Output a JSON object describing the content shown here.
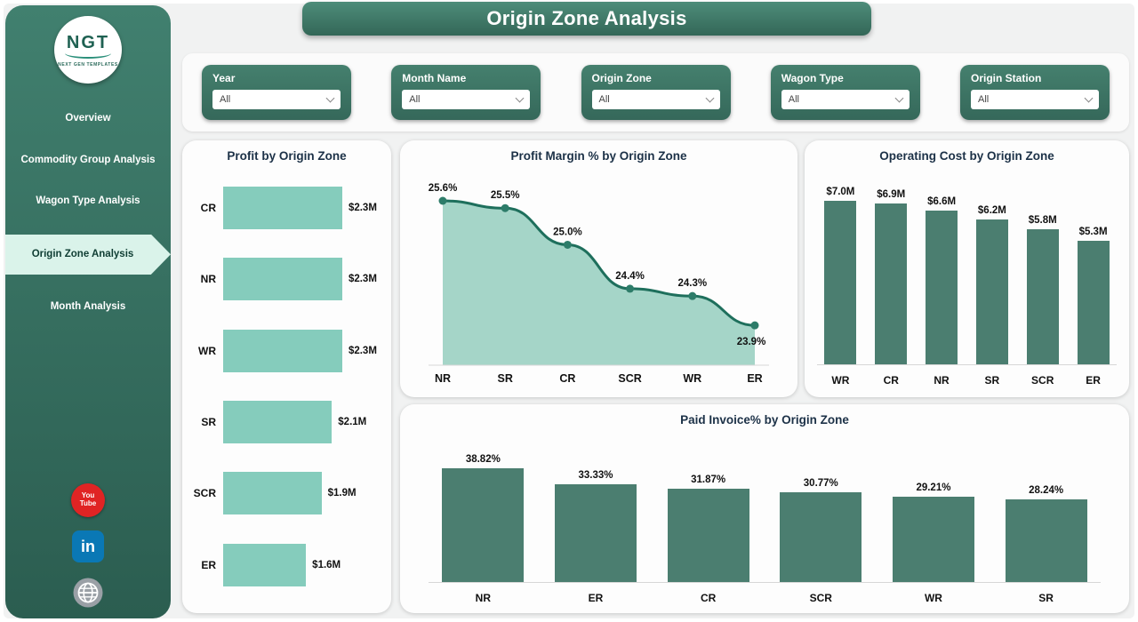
{
  "theme": {
    "bar_light": "#85ccbc",
    "bar_dark": "#4b7e70",
    "line": "#1e6f5c",
    "area_fill": "#a5d5c8",
    "dot": "#2d7c69",
    "sidebar_top": "#41806f",
    "sidebar_bottom": "#2b5d50",
    "active_nav_bg": "#daf3ea"
  },
  "header": {
    "title": "Origin Zone Analysis"
  },
  "sidebar": {
    "logo": {
      "text": "NGT",
      "subtext": "NEXT GEN TEMPLATES"
    },
    "items": [
      {
        "label": "Overview",
        "active": false
      },
      {
        "label": "Commodity Group Analysis",
        "active": false
      },
      {
        "label": "Wagon Type Analysis",
        "active": false
      },
      {
        "label": "Origin Zone Analysis",
        "active": true
      },
      {
        "label": "Month Analysis",
        "active": false
      }
    ],
    "social": {
      "youtube_line1": "You",
      "youtube_line2": "Tube",
      "linkedin": "in"
    }
  },
  "filters": [
    {
      "label": "Year",
      "value": "All"
    },
    {
      "label": "Month Name",
      "value": "All"
    },
    {
      "label": "Origin Zone",
      "value": "All"
    },
    {
      "label": "Wagon Type",
      "value": "All"
    },
    {
      "label": "Origin Station",
      "value": "All"
    }
  ],
  "chart_data": [
    {
      "type": "bar",
      "orientation": "horizontal",
      "title": "Profit by Origin Zone",
      "categories": [
        "CR",
        "NR",
        "WR",
        "SR",
        "SCR",
        "ER"
      ],
      "values": [
        2.3,
        2.3,
        2.3,
        2.1,
        1.9,
        1.6
      ],
      "labels": [
        "$2.3M",
        "$2.3M",
        "$2.3M",
        "$2.1M",
        "$1.9M",
        "$1.6M"
      ],
      "xlabel": "",
      "ylabel": "",
      "xlim": [
        0,
        2.5
      ],
      "grid": false
    },
    {
      "type": "area",
      "title": "Profit Margin % by Origin Zone",
      "categories": [
        "NR",
        "SR",
        "CR",
        "SCR",
        "WR",
        "ER"
      ],
      "values": [
        25.6,
        25.5,
        25.0,
        24.4,
        24.3,
        23.9
      ],
      "labels": [
        "25.6%",
        "25.5%",
        "25.0%",
        "24.4%",
        "24.3%",
        "23.9%"
      ],
      "xlabel": "",
      "ylabel": "",
      "ylim": [
        23.5,
        26
      ],
      "grid": false
    },
    {
      "type": "bar",
      "orientation": "vertical",
      "title": "Operating Cost by Origin Zone",
      "categories": [
        "WR",
        "CR",
        "NR",
        "SR",
        "SCR",
        "ER"
      ],
      "values": [
        7.0,
        6.9,
        6.6,
        6.2,
        5.8,
        5.3
      ],
      "labels": [
        "$7.0M",
        "$6.9M",
        "$6.6M",
        "$6.2M",
        "$5.8M",
        "$5.3M"
      ],
      "xlabel": "",
      "ylabel": "",
      "ylim": [
        0,
        7.5
      ],
      "grid": false
    },
    {
      "type": "bar",
      "orientation": "vertical",
      "title": "Paid Invoice% by Origin Zone",
      "categories": [
        "NR",
        "ER",
        "CR",
        "SCR",
        "WR",
        "SR"
      ],
      "values": [
        38.82,
        33.33,
        31.87,
        30.77,
        29.21,
        28.24
      ],
      "labels": [
        "38.82%",
        "33.33%",
        "31.87%",
        "30.77%",
        "29.21%",
        "28.24%"
      ],
      "xlabel": "",
      "ylabel": "",
      "ylim": [
        0,
        45
      ],
      "grid": false
    }
  ]
}
